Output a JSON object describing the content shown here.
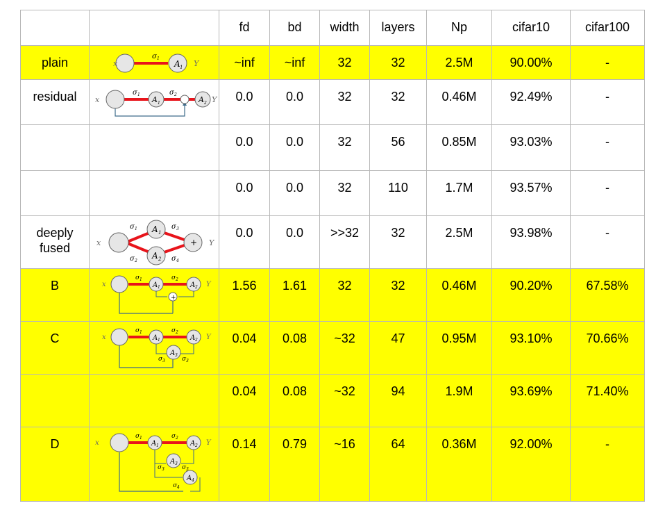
{
  "headers": [
    "",
    "",
    "fd",
    "bd",
    "width",
    "layers",
    "Np",
    "cifar10",
    "cifar100"
  ],
  "rows": [
    {
      "name": "plain",
      "diagram": "plain-network-diagram",
      "fd": "~inf",
      "bd": "~inf",
      "width": "32",
      "layers": "32",
      "np": "2.5M",
      "cifar10": "90.00%",
      "cifar100": "-",
      "highlight": true
    },
    {
      "name": "residual",
      "diagram": "residual-network-diagram",
      "fd": "0.0",
      "bd": "0.0",
      "width": "32",
      "layers": "32",
      "np": "0.46M",
      "cifar10": "92.49%",
      "cifar100": "-",
      "highlight": false
    },
    {
      "name": "",
      "diagram": "",
      "fd": "0.0",
      "bd": "0.0",
      "width": "32",
      "layers": "56",
      "np": "0.85M",
      "cifar10": "93.03%",
      "cifar100": "-",
      "highlight": false
    },
    {
      "name": "",
      "diagram": "",
      "fd": "0.0",
      "bd": "0.0",
      "width": "32",
      "layers": "110",
      "np": "1.7M",
      "cifar10": "93.57%",
      "cifar100": "-",
      "highlight": false
    },
    {
      "name": "deeply\nfused",
      "diagram": "deeply-fused-network-diagram",
      "fd": "0.0",
      "bd": "0.0",
      "width": ">>32",
      "layers": "32",
      "np": "2.5M",
      "cifar10": "93.98%",
      "cifar100": "-",
      "highlight": false
    },
    {
      "name": "B",
      "diagram": "network-b-diagram",
      "fd": "1.56",
      "bd": "1.61",
      "width": "32",
      "layers": "32",
      "np": "0.46M",
      "cifar10": "90.20%",
      "cifar100": "67.58%",
      "highlight": true
    },
    {
      "name": "C",
      "diagram": "network-c-diagram",
      "fd": "0.04",
      "bd": "0.08",
      "width": "~32",
      "layers": "47",
      "np": "0.95M",
      "cifar10": "93.10%",
      "cifar100": "70.66%",
      "highlight": true
    },
    {
      "name": "",
      "diagram": "",
      "fd": "0.04",
      "bd": "0.08",
      "width": "~32",
      "layers": "94",
      "np": "1.9M",
      "cifar10": "93.69%",
      "cifar100": "71.40%",
      "highlight": true
    },
    {
      "name": "D",
      "diagram": "network-d-diagram",
      "fd": "0.14",
      "bd": "0.79",
      "width": "~16",
      "layers": "64",
      "np": "0.36M",
      "cifar10": "92.00%",
      "cifar100": "-",
      "highlight": true
    }
  ],
  "diagram_labels": {
    "input": "x",
    "output": "Y",
    "a1": "A",
    "a2": "A",
    "a3": "A",
    "a4": "A",
    "s1": "σ",
    "s2": "σ",
    "s3": "σ",
    "s4": "σ",
    "sub1": "1",
    "sub2": "2",
    "sub3": "3",
    "sub4": "4",
    "plus": "+"
  },
  "colors": {
    "highlight": "#ffff00",
    "edge_red": "#e8141b",
    "edge_blue": "#3d6b8a",
    "node_fill": "#e6e6e6",
    "border": "#b7b7b7"
  }
}
